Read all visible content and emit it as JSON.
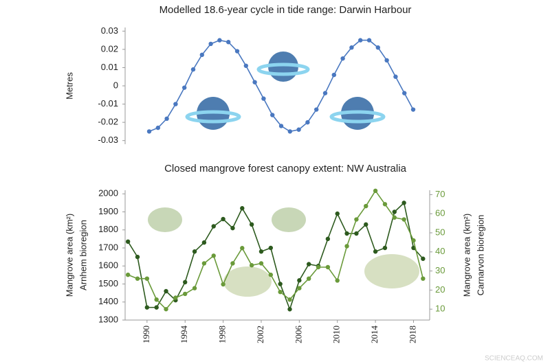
{
  "chart_data": [
    {
      "type": "line",
      "title": "Modelled 18.6-year cycle in tide range: Darwin Harbour",
      "ylabel": "Metres",
      "values": [
        -0.025,
        -0.023,
        -0.018,
        -0.01,
        -0.001,
        0.009,
        0.017,
        0.023,
        0.025,
        0.024,
        0.019,
        0.011,
        0.002,
        -0.007,
        -0.016,
        -0.022,
        -0.025,
        -0.024,
        -0.02,
        -0.013,
        -0.004,
        0.006,
        0.015,
        0.021,
        0.025,
        0.025,
        0.021,
        0.014,
        0.005,
        -0.004,
        -0.013
      ],
      "color": "#4a78c0",
      "ylim": [
        -0.032,
        0.032
      ],
      "yticks": [
        0.03,
        0.02,
        0.01,
        0,
        -0.01,
        -0.02,
        -0.03
      ]
    },
    {
      "type": "line",
      "title": "Closed mangrove forest  canopy extent: NW Australia",
      "ylabel": [
        "Mangrove area (km²)",
        "Arnhem bioregion"
      ],
      "y2label": [
        "Mangrove area (km²)",
        "Carnarvon bioregion"
      ],
      "x": [
        1988,
        1989,
        1990,
        1991,
        1992,
        1993,
        1994,
        1995,
        1996,
        1997,
        1998,
        1999,
        2000,
        2001,
        2002,
        2003,
        2004,
        2005,
        2006,
        2007,
        2008,
        2009,
        2010,
        2011,
        2012,
        2013,
        2014,
        2015,
        2016,
        2017,
        2018,
        2019
      ],
      "series": [
        {
          "name": "Arnhem bioregion",
          "color": "#2d5a1e",
          "values": [
            1735,
            1650,
            1370,
            1370,
            1460,
            1410,
            1510,
            1680,
            1730,
            1820,
            1860,
            1810,
            1920,
            1830,
            1680,
            1700,
            1500,
            1360,
            1520,
            1610,
            1600,
            1750,
            1890,
            1780,
            1780,
            1830,
            1680,
            1700,
            1900,
            1950,
            1700,
            1640
          ]
        },
        {
          "name": "Carnarvon bioregion",
          "color": "#6a9a3a",
          "axis": "y2",
          "values": [
            28,
            26,
            26,
            15,
            10,
            16,
            18,
            21,
            34,
            38,
            23,
            34,
            42,
            33,
            34,
            28,
            19,
            15,
            21,
            26,
            32,
            32,
            25,
            43,
            57,
            64,
            72,
            65,
            58,
            57,
            46,
            26
          ]
        }
      ],
      "xlim": [
        1987.7,
        2019.7
      ],
      "xticks": [
        1990,
        1994,
        1998,
        2002,
        2006,
        2010,
        2014,
        2018
      ],
      "ylim": [
        1300,
        2020
      ],
      "yticks": [
        1300,
        1400,
        1500,
        1600,
        1700,
        1800,
        1900,
        2000
      ],
      "y2lim": [
        4.3,
        72.3
      ],
      "y2ticks": [
        10,
        20,
        30,
        40,
        50,
        60,
        70
      ]
    }
  ],
  "watermark": "SCIENCEAQ.COM"
}
